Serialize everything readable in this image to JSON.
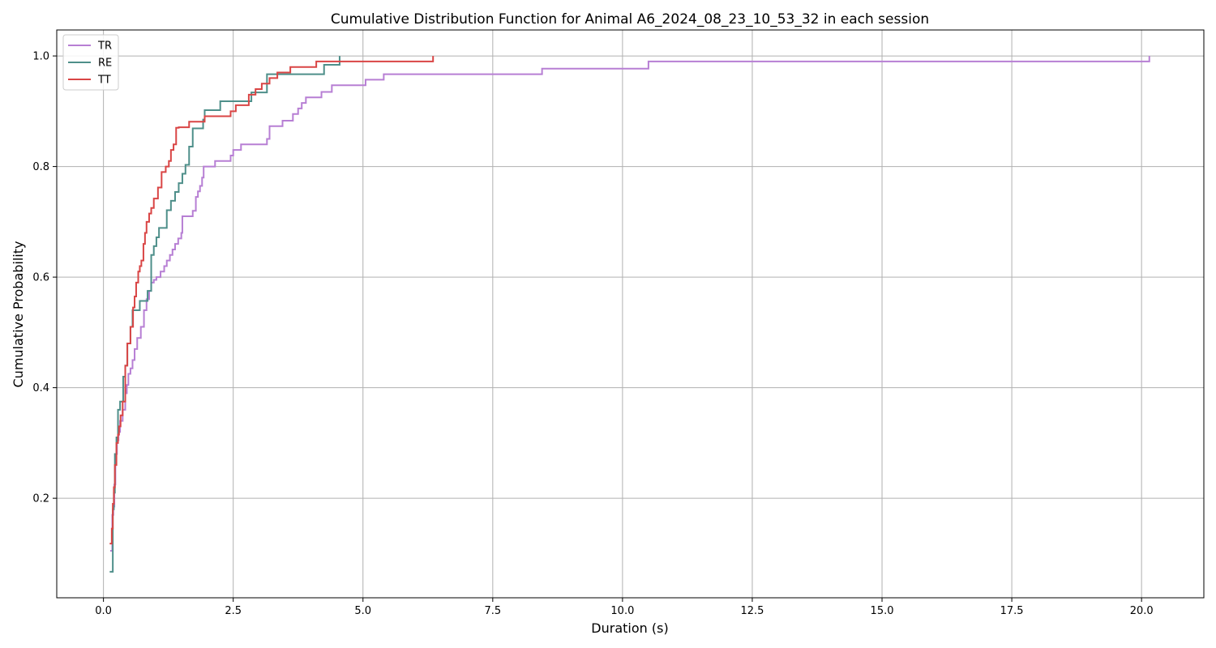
{
  "chart_data": {
    "type": "line",
    "drawstyle": "steps-post",
    "title": "Cumulative Distribution Function for Animal A6_2024_08_23_10_53_32 in each session",
    "xlabel": "Duration (s)",
    "ylabel": "Cumulative Probability",
    "xlim": [
      -0.9,
      21.2
    ],
    "ylim": [
      0.02,
      1.047
    ],
    "xticks": [
      0.0,
      2.5,
      5.0,
      7.5,
      10.0,
      12.5,
      15.0,
      17.5,
      20.0
    ],
    "xtick_labels": [
      "0.0",
      "2.5",
      "5.0",
      "7.5",
      "10.0",
      "12.5",
      "15.0",
      "17.5",
      "20.0"
    ],
    "yticks": [
      0.2,
      0.4,
      0.6,
      0.8,
      1.0
    ],
    "ytick_labels": [
      "0.2",
      "0.4",
      "0.6",
      "0.8",
      "1.0"
    ],
    "grid": true,
    "legend_position": "top-left",
    "series": [
      {
        "name": "TR",
        "color": "#b77fd4",
        "x": [
          0.13,
          0.17,
          0.19,
          0.21,
          0.23,
          0.26,
          0.29,
          0.32,
          0.37,
          0.42,
          0.45,
          0.48,
          0.52,
          0.56,
          0.6,
          0.65,
          0.72,
          0.78,
          0.83,
          0.88,
          0.92,
          0.97,
          1.02,
          1.1,
          1.17,
          1.22,
          1.28,
          1.33,
          1.38,
          1.44,
          1.5,
          1.52,
          1.72,
          1.78,
          1.82,
          1.86,
          1.9,
          1.93,
          2.15,
          2.45,
          2.5,
          2.65,
          3.15,
          3.2,
          3.45,
          3.65,
          3.75,
          3.82,
          3.9,
          4.2,
          4.4,
          5.05,
          5.4,
          8.45,
          10.5,
          20.15
        ],
        "y": [
          0.105,
          0.17,
          0.185,
          0.225,
          0.28,
          0.305,
          0.32,
          0.34,
          0.36,
          0.39,
          0.405,
          0.425,
          0.435,
          0.45,
          0.47,
          0.49,
          0.51,
          0.54,
          0.56,
          0.575,
          0.59,
          0.595,
          0.6,
          0.61,
          0.62,
          0.63,
          0.64,
          0.65,
          0.66,
          0.67,
          0.68,
          0.71,
          0.72,
          0.745,
          0.755,
          0.765,
          0.78,
          0.8,
          0.81,
          0.82,
          0.83,
          0.84,
          0.85,
          0.873,
          0.883,
          0.895,
          0.905,
          0.915,
          0.925,
          0.935,
          0.947,
          0.957,
          0.967,
          0.977,
          0.99,
          1.0
        ]
      },
      {
        "name": "RE",
        "color": "#4e8f8a",
        "x": [
          0.12,
          0.18,
          0.2,
          0.22,
          0.25,
          0.28,
          0.32,
          0.38,
          0.42,
          0.46,
          0.52,
          0.56,
          0.6,
          0.7,
          0.85,
          0.92,
          0.97,
          1.02,
          1.07,
          1.12,
          1.22,
          1.3,
          1.38,
          1.45,
          1.52,
          1.58,
          1.65,
          1.72,
          1.92,
          1.95,
          2.25,
          2.85,
          3.15,
          4.25,
          4.55
        ],
        "y": [
          0.067,
          0.18,
          0.21,
          0.28,
          0.31,
          0.36,
          0.375,
          0.42,
          0.44,
          0.48,
          0.51,
          0.54,
          0.54,
          0.557,
          0.575,
          0.64,
          0.656,
          0.672,
          0.689,
          0.689,
          0.721,
          0.738,
          0.754,
          0.77,
          0.787,
          0.803,
          0.836,
          0.869,
          0.885,
          0.902,
          0.918,
          0.934,
          0.967,
          0.984,
          1.0
        ]
      },
      {
        "name": "TT",
        "color": "#d94545",
        "x": [
          0.12,
          0.16,
          0.18,
          0.2,
          0.22,
          0.25,
          0.28,
          0.3,
          0.33,
          0.37,
          0.42,
          0.46,
          0.52,
          0.57,
          0.6,
          0.63,
          0.67,
          0.7,
          0.73,
          0.77,
          0.8,
          0.83,
          0.88,
          0.92,
          0.97,
          1.05,
          1.12,
          1.2,
          1.26,
          1.3,
          1.35,
          1.4,
          1.45,
          1.65,
          1.95,
          2.45,
          2.55,
          2.8,
          2.85,
          2.93,
          3.05,
          3.2,
          3.35,
          3.6,
          4.1,
          5.0,
          6.35
        ],
        "y": [
          0.118,
          0.145,
          0.19,
          0.22,
          0.26,
          0.3,
          0.315,
          0.33,
          0.35,
          0.375,
          0.44,
          0.48,
          0.51,
          0.545,
          0.565,
          0.59,
          0.61,
          0.62,
          0.63,
          0.66,
          0.68,
          0.7,
          0.715,
          0.725,
          0.742,
          0.762,
          0.79,
          0.8,
          0.81,
          0.83,
          0.84,
          0.87,
          0.871,
          0.881,
          0.891,
          0.9,
          0.911,
          0.93,
          0.93,
          0.94,
          0.95,
          0.96,
          0.97,
          0.98,
          0.99,
          0.99,
          1.0
        ]
      }
    ]
  }
}
